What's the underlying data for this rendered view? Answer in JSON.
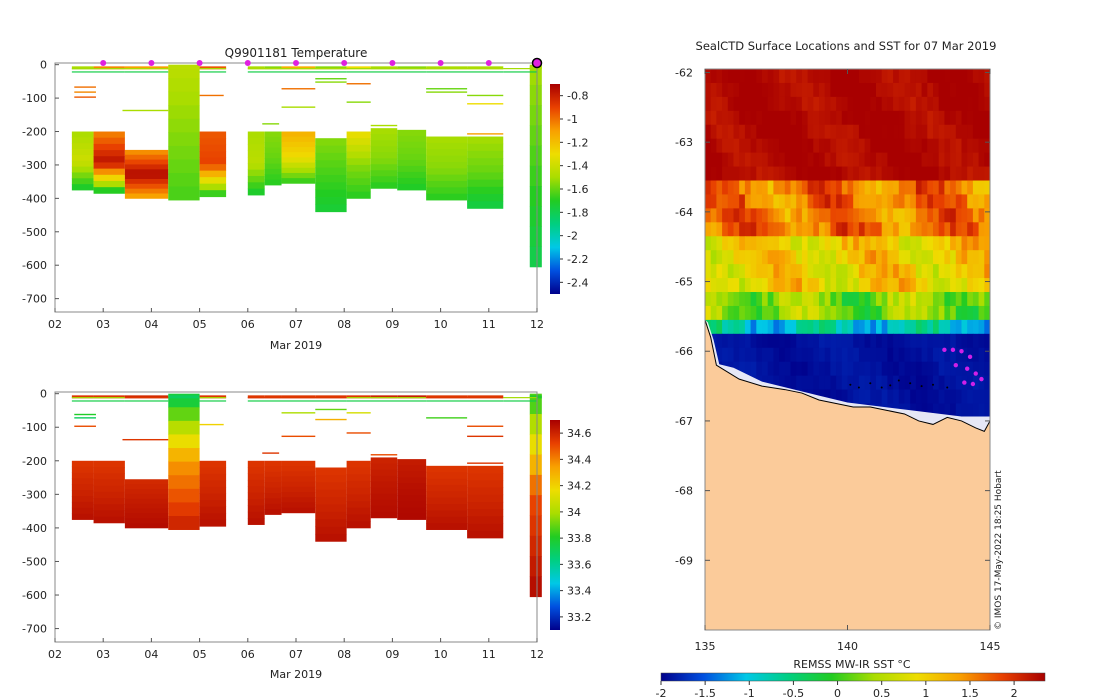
{
  "chart_data": [
    {
      "type": "heatmap",
      "title": "Q9901181  Temperature",
      "xlabel": "Mar 2019",
      "ylabel": "",
      "x_ticks": [
        "02",
        "03",
        "04",
        "05",
        "06",
        "07",
        "08",
        "09",
        "10",
        "11",
        "12"
      ],
      "y_ticks": [
        "0",
        "-100",
        "-200",
        "-300",
        "-400",
        "-500",
        "-600",
        "-700"
      ],
      "xlim": [
        2,
        12
      ],
      "ylim": [
        -740,
        5
      ],
      "colorbar": {
        "ticks": [
          "-0.8",
          "-1",
          "-1.2",
          "-1.4",
          "-1.6",
          "-1.8",
          "-2",
          "-2.2",
          "-2.4"
        ],
        "range": [
          -2.5,
          -0.7
        ],
        "colors": [
          "#00008b",
          "#0050e0",
          "#00c8e6",
          "#00cf80",
          "#22cc22",
          "#aadd00",
          "#eedd00",
          "#f8a000",
          "#e84000",
          "#a80000"
        ]
      },
      "marker_days": [
        3.0,
        4.0,
        5.0,
        6.0,
        7.0,
        8.0,
        9.0,
        10.0,
        11.0
      ],
      "last_marker_day": 12.0,
      "profiles": [
        {
          "start": 2.35,
          "end": 2.8,
          "top": -200,
          "bottom": -375,
          "surface": -1.5,
          "mid": -1.4,
          "deep": -1.75
        },
        {
          "start": 2.8,
          "end": 3.45,
          "top": -200,
          "bottom": -385,
          "surface": -1.05,
          "mid": -0.75,
          "deep": -1.8
        },
        {
          "start": 3.45,
          "end": 4.35,
          "top": -255,
          "bottom": -400,
          "surface": -1.1,
          "mid": -0.72,
          "deep": -1.15
        },
        {
          "start": 4.35,
          "end": 5.0,
          "top": 0,
          "bottom": -405,
          "surface": -1.45,
          "mid": -1.55,
          "deep": -1.65
        },
        {
          "start": 5.0,
          "end": 5.55,
          "top": -200,
          "bottom": -395,
          "surface": -0.95,
          "mid": -0.9,
          "deep": -1.75
        },
        {
          "start": 6.0,
          "end": 6.35,
          "top": -200,
          "bottom": -390,
          "surface": -1.5,
          "mid": -1.45,
          "deep": -1.75
        },
        {
          "start": 6.35,
          "end": 6.7,
          "top": -200,
          "bottom": -360,
          "surface": -1.55,
          "mid": -1.6,
          "deep": -1.7
        },
        {
          "start": 6.7,
          "end": 7.4,
          "top": -200,
          "bottom": -355,
          "surface": -1.15,
          "mid": -1.3,
          "deep": -1.7
        },
        {
          "start": 7.4,
          "end": 8.05,
          "top": -220,
          "bottom": -440,
          "surface": -1.55,
          "mid": -1.65,
          "deep": -1.75
        },
        {
          "start": 8.05,
          "end": 8.55,
          "top": -200,
          "bottom": -400,
          "surface": -1.3,
          "mid": -1.55,
          "deep": -1.7
        },
        {
          "start": 8.55,
          "end": 9.1,
          "top": -190,
          "bottom": -370,
          "surface": -1.5,
          "mid": -1.55,
          "deep": -1.7
        },
        {
          "start": 9.1,
          "end": 9.7,
          "top": -195,
          "bottom": -375,
          "surface": -1.55,
          "mid": -1.6,
          "deep": -1.72
        },
        {
          "start": 9.7,
          "end": 10.55,
          "top": -215,
          "bottom": -405,
          "surface": -1.5,
          "mid": -1.55,
          "deep": -1.7
        },
        {
          "start": 10.55,
          "end": 11.3,
          "top": -215,
          "bottom": -430,
          "surface": -1.5,
          "mid": -1.6,
          "deep": -1.78
        },
        {
          "start": 11.85,
          "end": 12.1,
          "top": 0,
          "bottom": -605,
          "surface": -1.5,
          "mid": -1.65,
          "deep": -1.8
        }
      ],
      "traces": [
        {
          "start": 2.4,
          "end": 2.85,
          "depth": -65,
          "value": -1.0
        },
        {
          "start": 2.4,
          "end": 2.85,
          "depth": -80,
          "value": -1.05
        },
        {
          "start": 2.4,
          "end": 2.85,
          "depth": -95,
          "value": -0.95
        },
        {
          "start": 3.4,
          "end": 4.35,
          "depth": -135,
          "value": -1.5
        },
        {
          "start": 5.0,
          "end": 5.5,
          "depth": -90,
          "value": -1.0
        },
        {
          "start": 6.3,
          "end": 6.65,
          "depth": -175,
          "value": -1.55
        },
        {
          "start": 6.7,
          "end": 7.4,
          "depth": -70,
          "value": -1.0
        },
        {
          "start": 6.7,
          "end": 7.4,
          "depth": -125,
          "value": -1.5
        },
        {
          "start": 7.4,
          "end": 8.05,
          "depth": -40,
          "value": -1.6
        },
        {
          "start": 7.4,
          "end": 8.05,
          "depth": -50,
          "value": -1.55
        },
        {
          "start": 8.05,
          "end": 8.55,
          "depth": -55,
          "value": -1.0
        },
        {
          "start": 8.05,
          "end": 8.55,
          "depth": -110,
          "value": -1.55
        },
        {
          "start": 8.55,
          "end": 9.1,
          "depth": -180,
          "value": -1.5
        },
        {
          "start": 9.7,
          "end": 10.55,
          "depth": -70,
          "value": -1.6
        },
        {
          "start": 9.7,
          "end": 10.55,
          "depth": -80,
          "value": -1.55
        },
        {
          "start": 10.55,
          "end": 11.3,
          "depth": -90,
          "value": -1.55
        },
        {
          "start": 10.55,
          "end": 11.3,
          "depth": -115,
          "value": -1.3
        },
        {
          "start": 10.55,
          "end": 11.3,
          "depth": -205,
          "value": -1.1
        }
      ]
    },
    {
      "type": "heatmap",
      "title": "",
      "xlabel": "Mar 2019",
      "ylabel": "",
      "x_ticks": [
        "02",
        "03",
        "04",
        "05",
        "06",
        "07",
        "08",
        "09",
        "10",
        "11",
        "12"
      ],
      "y_ticks": [
        "0",
        "-100",
        "-200",
        "-300",
        "-400",
        "-500",
        "-600",
        "-700"
      ],
      "xlim": [
        2,
        12
      ],
      "ylim": [
        -740,
        5
      ],
      "colorbar": {
        "ticks": [
          "34.6",
          "34.4",
          "34.2",
          "34",
          "33.8",
          "33.6",
          "33.4",
          "33.2"
        ],
        "range": [
          33.1,
          34.7
        ],
        "colors": [
          "#00008b",
          "#0050e0",
          "#00c8e6",
          "#00cf80",
          "#22cc22",
          "#aadd00",
          "#eedd00",
          "#f8a000",
          "#e84000",
          "#a80000"
        ]
      },
      "profiles": [
        {
          "start": 2.35,
          "end": 2.8,
          "top": -200,
          "bottom": -375,
          "surface": 34.55,
          "mid": 34.6,
          "deep": 34.66
        },
        {
          "start": 2.8,
          "end": 3.45,
          "top": -200,
          "bottom": -385,
          "surface": 34.55,
          "mid": 34.6,
          "deep": 34.66
        },
        {
          "start": 3.45,
          "end": 4.35,
          "top": -255,
          "bottom": -400,
          "surface": 34.58,
          "mid": 34.63,
          "deep": 34.67
        },
        {
          "start": 4.35,
          "end": 5.0,
          "top": 0,
          "bottom": -405,
          "surface": 33.7,
          "mid": 34.35,
          "deep": 34.62
        },
        {
          "start": 5.0,
          "end": 5.55,
          "top": -200,
          "bottom": -395,
          "surface": 34.55,
          "mid": 34.6,
          "deep": 34.66
        },
        {
          "start": 6.0,
          "end": 6.35,
          "top": -200,
          "bottom": -390,
          "surface": 34.55,
          "mid": 34.6,
          "deep": 34.66
        },
        {
          "start": 6.35,
          "end": 6.7,
          "top": -200,
          "bottom": -360,
          "surface": 34.55,
          "mid": 34.6,
          "deep": 34.66
        },
        {
          "start": 6.7,
          "end": 7.4,
          "top": -200,
          "bottom": -355,
          "surface": 34.55,
          "mid": 34.6,
          "deep": 34.66
        },
        {
          "start": 7.4,
          "end": 8.05,
          "top": -220,
          "bottom": -440,
          "surface": 34.55,
          "mid": 34.6,
          "deep": 34.66
        },
        {
          "start": 8.05,
          "end": 8.55,
          "top": -200,
          "bottom": -400,
          "surface": 34.55,
          "mid": 34.6,
          "deep": 34.66
        },
        {
          "start": 8.55,
          "end": 9.1,
          "top": -190,
          "bottom": -370,
          "surface": 34.6,
          "mid": 34.64,
          "deep": 34.67
        },
        {
          "start": 9.1,
          "end": 9.7,
          "top": -195,
          "bottom": -375,
          "surface": 34.62,
          "mid": 34.66,
          "deep": 34.68
        },
        {
          "start": 9.7,
          "end": 10.55,
          "top": -215,
          "bottom": -405,
          "surface": 34.55,
          "mid": 34.6,
          "deep": 34.66
        },
        {
          "start": 10.55,
          "end": 11.3,
          "top": -215,
          "bottom": -430,
          "surface": 34.55,
          "mid": 34.6,
          "deep": 34.66
        },
        {
          "start": 11.85,
          "end": 12.1,
          "top": 0,
          "bottom": -605,
          "surface": 33.8,
          "mid": 34.5,
          "deep": 34.68
        }
      ],
      "traces": [
        {
          "start": 2.4,
          "end": 2.85,
          "depth": -60,
          "value": 33.8
        },
        {
          "start": 2.4,
          "end": 2.85,
          "depth": -70,
          "value": 33.7
        },
        {
          "start": 2.4,
          "end": 2.85,
          "depth": -95,
          "value": 34.5
        },
        {
          "start": 3.4,
          "end": 4.35,
          "depth": -135,
          "value": 34.55
        },
        {
          "start": 5.0,
          "end": 5.5,
          "depth": -90,
          "value": 34.2
        },
        {
          "start": 6.3,
          "end": 6.65,
          "depth": -175,
          "value": 34.55
        },
        {
          "start": 6.7,
          "end": 7.4,
          "depth": -55,
          "value": 34.0
        },
        {
          "start": 6.7,
          "end": 7.4,
          "depth": -125,
          "value": 34.5
        },
        {
          "start": 7.4,
          "end": 8.05,
          "depth": -45,
          "value": 33.9
        },
        {
          "start": 7.4,
          "end": 8.05,
          "depth": -75,
          "value": 34.3
        },
        {
          "start": 8.05,
          "end": 8.55,
          "depth": -55,
          "value": 34.1
        },
        {
          "start": 8.05,
          "end": 8.55,
          "depth": -115,
          "value": 34.5
        },
        {
          "start": 8.55,
          "end": 9.1,
          "depth": -180,
          "value": 34.5
        },
        {
          "start": 9.7,
          "end": 10.55,
          "depth": -70,
          "value": 33.85
        },
        {
          "start": 10.55,
          "end": 11.3,
          "depth": -95,
          "value": 34.5
        },
        {
          "start": 10.55,
          "end": 11.3,
          "depth": -125,
          "value": 34.55
        },
        {
          "start": 10.55,
          "end": 11.3,
          "depth": -205,
          "value": 34.55
        }
      ]
    },
    {
      "type": "heatmap",
      "title": "SealCTD Surface Locations and SST for 07 Mar 2019",
      "xlabel": "",
      "ylabel": "",
      "x_ticks": [
        "135",
        "140",
        "145"
      ],
      "y_ticks": [
        "-62",
        "-63",
        "-64",
        "-65",
        "-66",
        "-67",
        "-68",
        "-69"
      ],
      "xlim": [
        135,
        145
      ],
      "ylim": [
        -70,
        -61.95
      ],
      "colorbar": {
        "label": "REMSS MW-IR SST °C",
        "ticks": [
          "-2",
          "-1.5",
          "-1",
          "-0.5",
          "0",
          "0.5",
          "1",
          "1.5",
          "2"
        ],
        "range": [
          -2,
          2.35
        ],
        "colors": [
          "#00008b",
          "#0050e0",
          "#00c8e6",
          "#00cf80",
          "#22cc22",
          "#aadd00",
          "#eedd00",
          "#f8a000",
          "#e84000",
          "#a80000"
        ]
      },
      "credit": "© IMOS 17-May-2022 18:25 Hobart",
      "coastline": [
        [
          135.0,
          -65.55
        ],
        [
          135.2,
          -65.8
        ],
        [
          135.4,
          -66.2
        ],
        [
          135.8,
          -66.3
        ],
        [
          136.2,
          -66.4
        ],
        [
          137.0,
          -66.5
        ],
        [
          137.8,
          -66.55
        ],
        [
          138.4,
          -66.6
        ],
        [
          139.0,
          -66.7
        ],
        [
          139.6,
          -66.75
        ],
        [
          140.2,
          -66.8
        ],
        [
          140.8,
          -66.8
        ],
        [
          141.4,
          -66.85
        ],
        [
          142.0,
          -66.9
        ],
        [
          142.5,
          -67.0
        ],
        [
          143.0,
          -67.05
        ],
        [
          143.5,
          -66.95
        ],
        [
          144.0,
          -67.0
        ],
        [
          144.5,
          -67.1
        ],
        [
          144.8,
          -67.15
        ],
        [
          145.0,
          -67.0
        ]
      ],
      "ice_edge": [
        [
          135.1,
          -65.5
        ],
        [
          135.3,
          -65.75
        ],
        [
          135.5,
          -66.1
        ],
        [
          136.0,
          -66.15
        ],
        [
          137.0,
          -66.35
        ],
        [
          138.0,
          -66.45
        ],
        [
          139.0,
          -66.55
        ],
        [
          140.0,
          -66.65
        ],
        [
          141.0,
          -66.7
        ],
        [
          142.0,
          -66.75
        ],
        [
          143.0,
          -66.8
        ],
        [
          144.0,
          -66.85
        ],
        [
          145.0,
          -66.85
        ]
      ],
      "seal_locations": [
        [
          143.4,
          -65.98
        ],
        [
          143.7,
          -65.98
        ],
        [
          144.0,
          -66.0
        ],
        [
          144.3,
          -66.08
        ],
        [
          143.8,
          -66.2
        ],
        [
          144.2,
          -66.25
        ],
        [
          144.5,
          -66.32
        ],
        [
          144.1,
          -66.45
        ],
        [
          144.4,
          -66.47
        ],
        [
          144.7,
          -66.4
        ]
      ],
      "track_points": [
        [
          140.1,
          -66.48
        ],
        [
          140.4,
          -66.52
        ],
        [
          140.8,
          -66.46
        ],
        [
          141.2,
          -66.52
        ],
        [
          141.5,
          -66.49
        ],
        [
          141.8,
          -66.42
        ],
        [
          142.2,
          -66.46
        ],
        [
          142.6,
          -66.5
        ],
        [
          143.0,
          -66.48
        ],
        [
          143.5,
          -66.52
        ]
      ],
      "sst_zones": [
        {
          "name": "warm-north",
          "lat_top": -61.95,
          "lat_bottom": -63.5,
          "value": 2.3
        },
        {
          "name": "orange-band",
          "lat_top": -63.5,
          "lat_bottom": -64.3,
          "value": 1.6
        },
        {
          "name": "yellow-band",
          "lat_top": -64.3,
          "lat_bottom": -65.0,
          "value": 1.0
        },
        {
          "name": "green-band",
          "lat_top": -65.0,
          "lat_bottom": -65.45,
          "value": 0.3
        },
        {
          "name": "cyan-band",
          "lat_top": -65.45,
          "lat_bottom": -65.75,
          "value": -0.9
        },
        {
          "name": "cold-shelf",
          "lat_top": -65.75,
          "lat_bottom": -67.1,
          "value": -1.9
        }
      ]
    }
  ]
}
